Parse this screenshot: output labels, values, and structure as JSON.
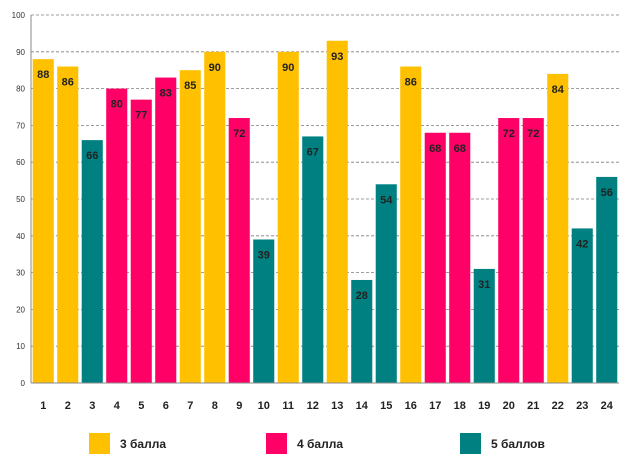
{
  "chart_data": {
    "type": "bar",
    "title": "",
    "xlabel": "",
    "ylabel": "",
    "ylim": [
      0,
      100
    ],
    "yticks": [
      0,
      10,
      20,
      30,
      40,
      50,
      60,
      70,
      80,
      90,
      100
    ],
    "grid": true,
    "categories": [
      "1",
      "2",
      "3",
      "4",
      "5",
      "6",
      "7",
      "8",
      "9",
      "10",
      "11",
      "12",
      "13",
      "14",
      "15",
      "16",
      "17",
      "18",
      "19",
      "20",
      "21",
      "22",
      "23",
      "24"
    ],
    "values": [
      88,
      86,
      66,
      80,
      77,
      83,
      85,
      90,
      72,
      39,
      90,
      67,
      93,
      28,
      54,
      86,
      68,
      68,
      31,
      72,
      72,
      84,
      42,
      56
    ],
    "groups": [
      "3",
      "3",
      "5",
      "4",
      "4",
      "4",
      "3",
      "3",
      "4",
      "5",
      "3",
      "5",
      "3",
      "5",
      "5",
      "3",
      "4",
      "4",
      "5",
      "4",
      "4",
      "3",
      "5",
      "5"
    ],
    "legend_position": "bottom",
    "legend": [
      {
        "key": "3",
        "label": "3 балла",
        "color": "#FFC000"
      },
      {
        "key": "4",
        "label": "4 балла",
        "color": "#FF0066"
      },
      {
        "key": "5",
        "label": "5 баллов",
        "color": "#008080"
      }
    ]
  }
}
